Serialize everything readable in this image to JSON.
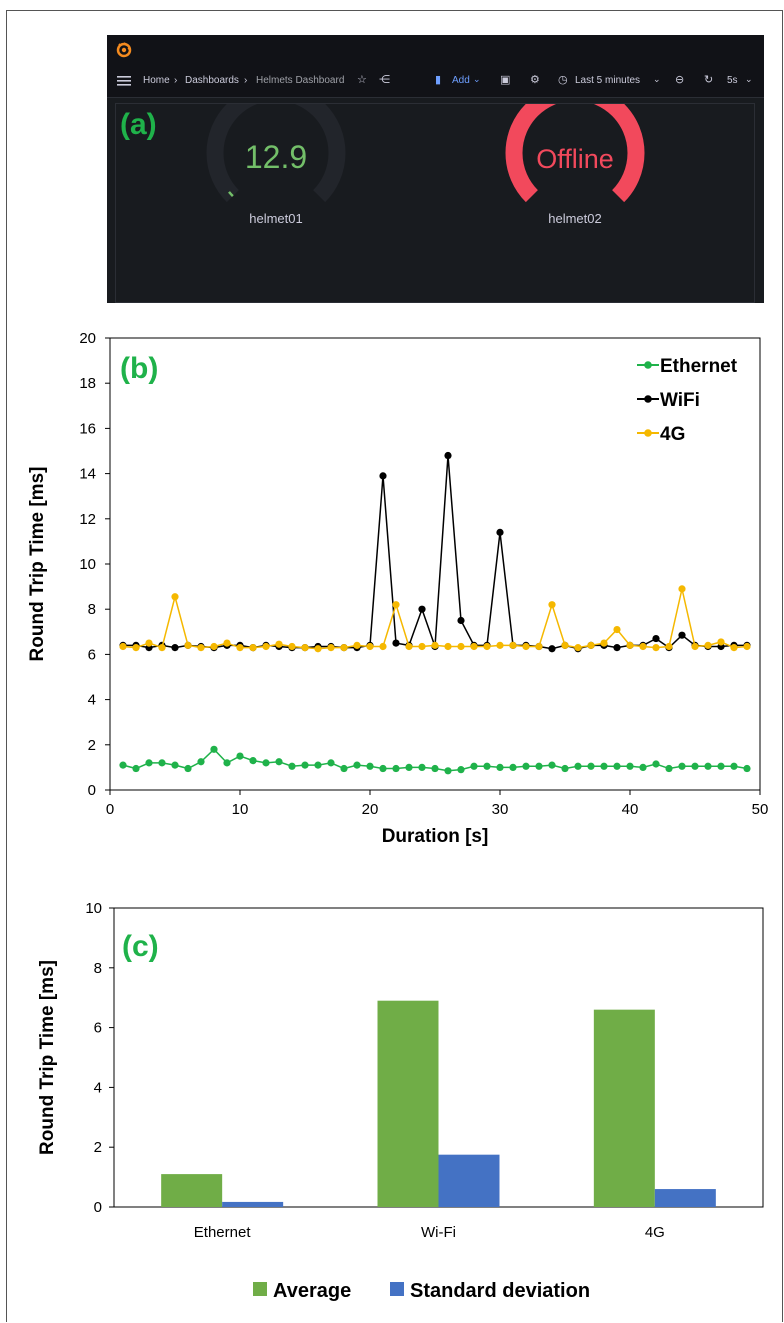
{
  "panel_a": {
    "tag": "(a)",
    "breadcrumb": [
      "Home",
      "Dashboards",
      "Helmets Dashboard"
    ],
    "breadcrumb_sep": "›",
    "add_label": "Add",
    "time_range": "Last 5 minutes",
    "refresh": "5s",
    "gauges": [
      {
        "label": "helmet01",
        "value": "12.9",
        "fill_fraction": 0.02,
        "color": "#73bf69"
      },
      {
        "label": "helmet02",
        "value": "Offline",
        "fill_fraction": 1.0,
        "color": "#f2495c"
      }
    ],
    "colors": {
      "bg": "#181b1f",
      "topbar": "#111217",
      "accent": "#6e9fff"
    }
  },
  "chart_data": [
    {
      "type": "line",
      "tag": "(b)",
      "xlabel": "Duration [s]",
      "ylabel": "Round Trip Time [ms]",
      "xlim": [
        0,
        50
      ],
      "ylim": [
        0,
        20
      ],
      "xticks": [
        0,
        10,
        20,
        30,
        40,
        50
      ],
      "yticks": [
        0,
        2,
        4,
        6,
        8,
        10,
        12,
        14,
        16,
        18,
        20
      ],
      "grid": false,
      "legend": "top-right",
      "x": [
        1,
        2,
        3,
        4,
        5,
        6,
        7,
        8,
        9,
        10,
        11,
        12,
        13,
        14,
        15,
        16,
        17,
        18,
        19,
        20,
        21,
        22,
        23,
        24,
        25,
        26,
        27,
        28,
        29,
        30,
        31,
        32,
        33,
        34,
        35,
        36,
        37,
        38,
        39,
        40,
        41,
        42,
        43,
        44,
        45,
        46,
        47,
        48,
        49
      ],
      "series": [
        {
          "name": "Ethernet",
          "color": "#1fb24a",
          "values": [
            1.1,
            0.95,
            1.2,
            1.2,
            1.1,
            0.95,
            1.25,
            1.8,
            1.2,
            1.5,
            1.3,
            1.2,
            1.25,
            1.05,
            1.1,
            1.1,
            1.2,
            0.95,
            1.1,
            1.05,
            0.95,
            0.95,
            1.0,
            1.0,
            0.95,
            0.85,
            0.9,
            1.05,
            1.05,
            1.0,
            1.0,
            1.05,
            1.05,
            1.1,
            0.95,
            1.05,
            1.05,
            1.05,
            1.05,
            1.05,
            1.0,
            1.15,
            0.95,
            1.05,
            1.05,
            1.05,
            1.05,
            1.05,
            0.95
          ]
        },
        {
          "name": "WiFi",
          "color": "#000000",
          "values": [
            6.4,
            6.4,
            6.3,
            6.4,
            6.3,
            6.4,
            6.35,
            6.3,
            6.4,
            6.4,
            6.3,
            6.4,
            6.35,
            6.3,
            6.3,
            6.35,
            6.35,
            6.3,
            6.3,
            6.4,
            13.9,
            6.5,
            6.4,
            8.0,
            6.35,
            14.8,
            7.5,
            6.4,
            6.4,
            11.4,
            6.4,
            6.4,
            6.35,
            6.25,
            6.4,
            6.25,
            6.4,
            6.4,
            6.3,
            6.4,
            6.4,
            6.7,
            6.3,
            6.85,
            6.4,
            6.35,
            6.35,
            6.4,
            6.4
          ]
        },
        {
          "name": "4G",
          "color": "#f5b800",
          "values": [
            6.35,
            6.3,
            6.5,
            6.3,
            8.55,
            6.4,
            6.3,
            6.35,
            6.5,
            6.3,
            6.3,
            6.35,
            6.45,
            6.35,
            6.3,
            6.25,
            6.3,
            6.3,
            6.4,
            6.35,
            6.35,
            8.2,
            6.35,
            6.35,
            6.4,
            6.35,
            6.35,
            6.35,
            6.35,
            6.4,
            6.4,
            6.35,
            6.35,
            8.2,
            6.4,
            6.3,
            6.4,
            6.5,
            7.1,
            6.4,
            6.35,
            6.3,
            6.35,
            8.9,
            6.35,
            6.4,
            6.55,
            6.3,
            6.35
          ]
        }
      ]
    },
    {
      "type": "bar",
      "tag": "(c)",
      "xlabel": "",
      "ylabel": "Round Trip Time [ms]",
      "ylim": [
        0,
        10
      ],
      "yticks": [
        0,
        2,
        4,
        6,
        8,
        10
      ],
      "grid": false,
      "legend": "bottom",
      "categories": [
        "Ethernet",
        "Wi-Fi",
        "4G"
      ],
      "series": [
        {
          "name": "Average",
          "color": "#70ad47",
          "values": [
            1.1,
            6.9,
            6.6
          ]
        },
        {
          "name": "Standard deviation",
          "color": "#4472c4",
          "values": [
            0.17,
            1.75,
            0.6
          ]
        }
      ]
    }
  ]
}
